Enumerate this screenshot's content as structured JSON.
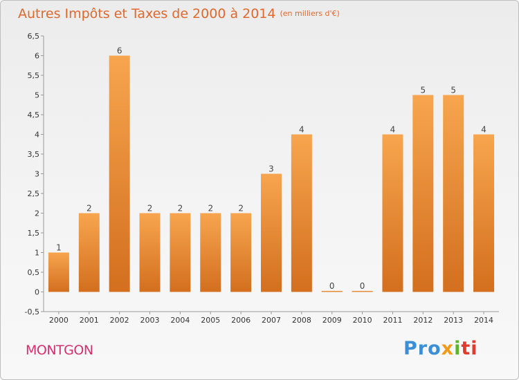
{
  "chart_data": {
    "type": "bar",
    "title": "Autres Impôts et Taxes de 2000 à 2014",
    "subtitle": "(en milliers d'€)",
    "categories": [
      "2000",
      "2001",
      "2002",
      "2003",
      "2004",
      "2005",
      "2006",
      "2007",
      "2008",
      "2009",
      "2010",
      "2011",
      "2012",
      "2013",
      "2014"
    ],
    "values": [
      1,
      2,
      6,
      2,
      2,
      2,
      2,
      3,
      4,
      0,
      0,
      4,
      5,
      5,
      4
    ],
    "data_labels": [
      "1",
      "2",
      "6",
      "2",
      "2",
      "2",
      "2",
      "3",
      "4",
      "0",
      "0",
      "4",
      "5",
      "5",
      "4"
    ],
    "ylim": [
      -0.5,
      6.5
    ],
    "yticks": [
      -0.5,
      0,
      0.5,
      1,
      1.5,
      2,
      2.5,
      3,
      3.5,
      4,
      4.5,
      5,
      5.5,
      6,
      6.5
    ],
    "ytick_labels": [
      "-0,5",
      "0",
      "0,5",
      "1",
      "1,5",
      "2",
      "2,5",
      "3",
      "3,5",
      "4",
      "4,5",
      "5",
      "5,5",
      "6",
      "6,5"
    ],
    "grid": false,
    "colors": {
      "bar_top": "#f7a54e",
      "bar_bottom": "#d36f1e",
      "title": "#e0682c",
      "location": "#d6306c"
    }
  },
  "location_label": "MONTGON",
  "logo": {
    "part1": "Pro",
    "part2": "x",
    "part3": "i",
    "part4": "ti"
  }
}
